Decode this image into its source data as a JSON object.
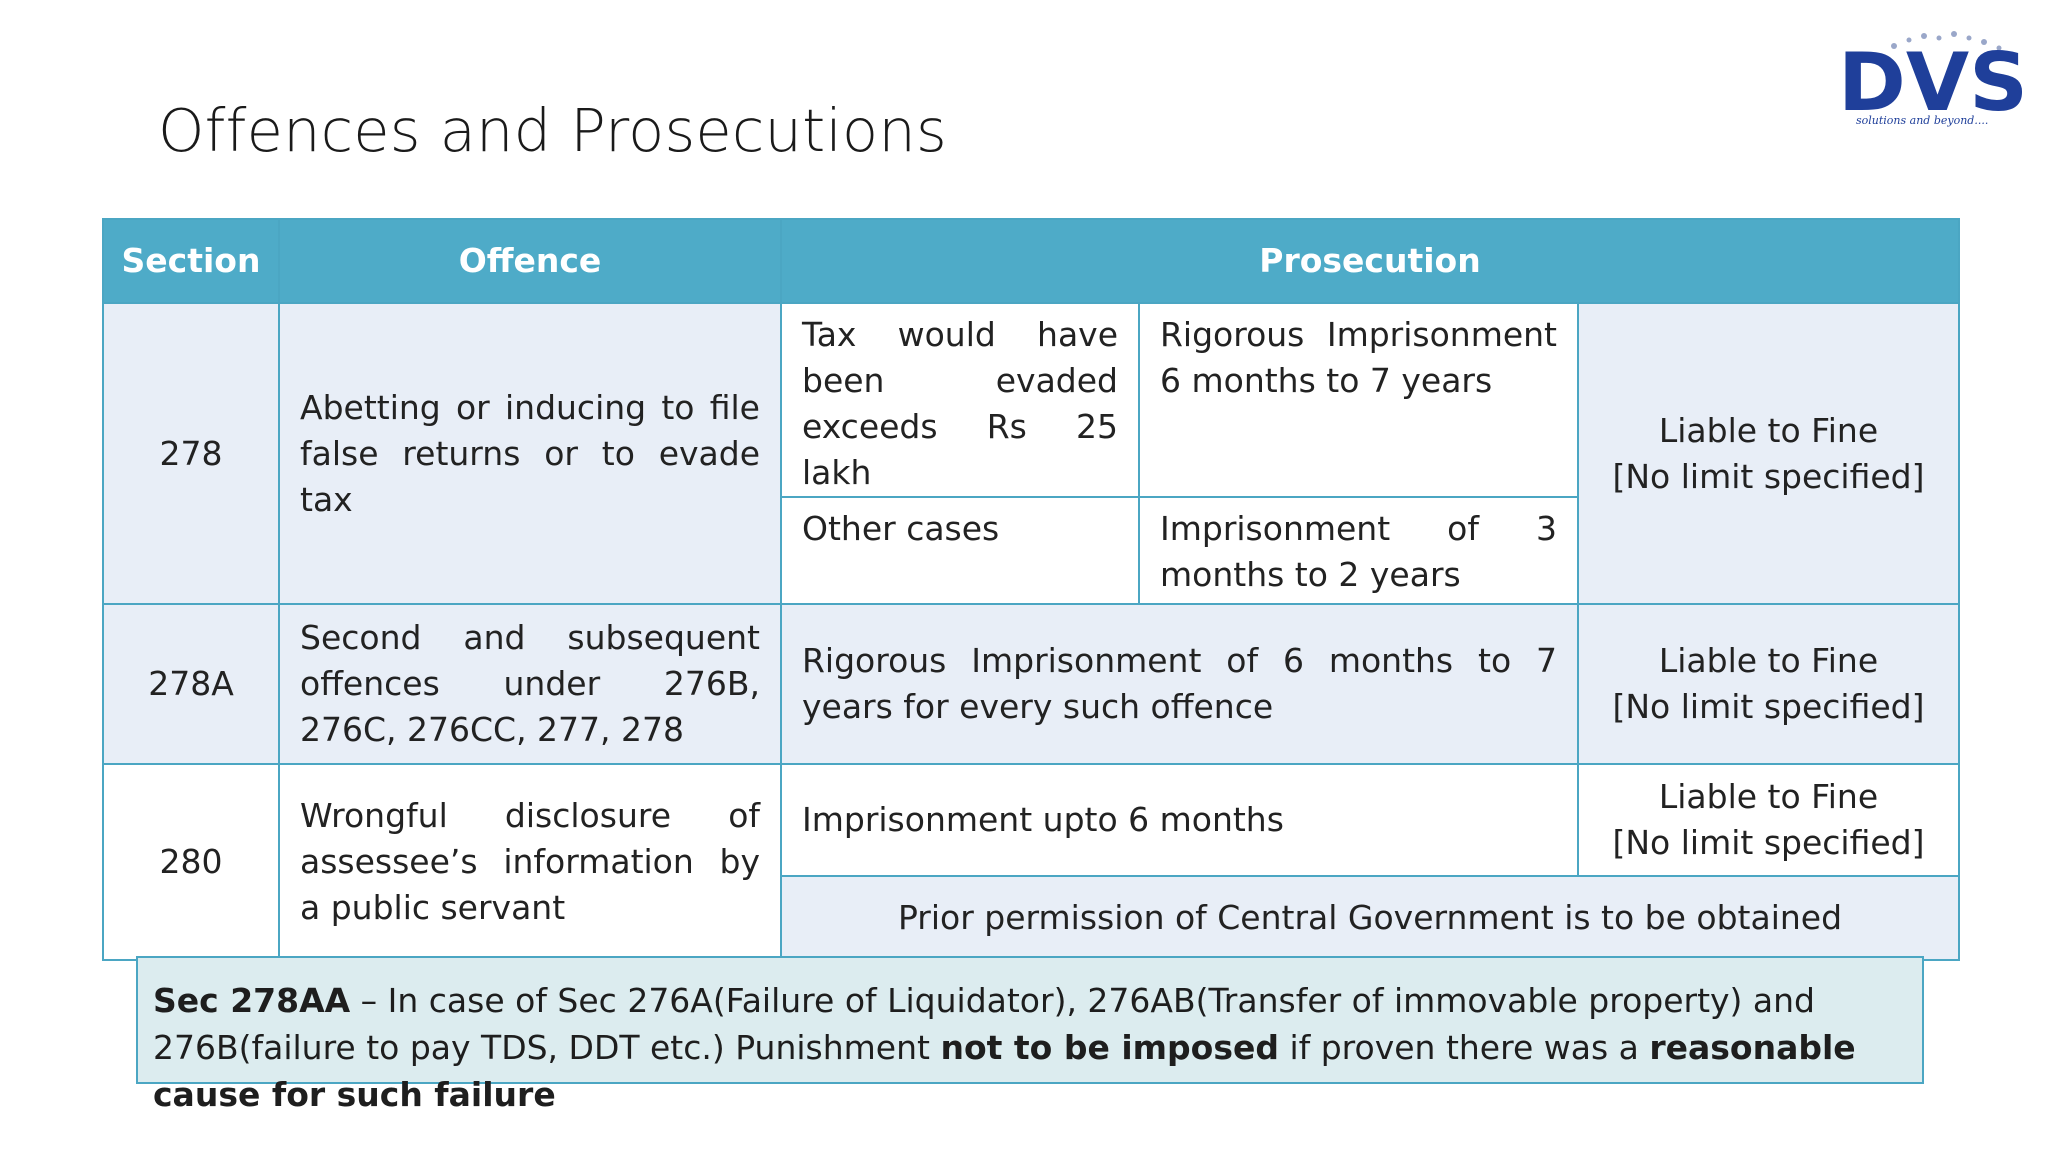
{
  "title": "Offences and Prosecutions",
  "logo": {
    "text": "DVS",
    "tagline": "solutions and beyond...."
  },
  "table": {
    "headers": {
      "section": "Section",
      "offence": "Offence",
      "prosecution": "Prosecution"
    },
    "rows": [
      {
        "section": "278",
        "offence": "Abetting or inducing to file false returns or to evade tax",
        "case_1": "Tax would have been evaded exceeds Rs 25 lakh",
        "punishment_1": "Rigorous Imprisonment 6 months to 7 years",
        "case_2": "Other cases",
        "punishment_2": "Imprisonment of 3 months to 2 years",
        "fine_line_1": "Liable to Fine",
        "fine_line_2": "[No limit specified]"
      },
      {
        "section": "278A",
        "offence": "Second and subsequent offences under 276B, 276C, 276CC, 277, 278",
        "punishment": "Rigorous Imprisonment of 6 months to 7 years for every such offence",
        "fine_line_1": "Liable to Fine",
        "fine_line_2": "[No limit specified]"
      },
      {
        "section": "280",
        "offence": "Wrongful disclosure of assessee’s information by a public servant",
        "punishment": "Imprisonment upto 6 months",
        "fine_line_1": "Liable to Fine",
        "fine_line_2": "[No limit specified]",
        "note": "Prior permission of Central Government is to be obtained"
      }
    ]
  },
  "footer_note": {
    "part_1_bold": "Sec 278AA",
    "part_2": " – In case of Sec 276A(Failure of Liquidator), 276AB(Transfer of immovable property) and 276B(failure to pay TDS, DDT etc.) Punishment ",
    "part_3_bold": "not to be imposed",
    "part_4": " if proven there was a ",
    "part_5_bold": "reasonable cause for such failure"
  },
  "colors": {
    "header_bg": "#4eabc8",
    "border": "#4ba6c3",
    "row_shade": "#e8eef7",
    "note_bg": "#dcecef",
    "logo_blue": "#1f3f9a"
  }
}
